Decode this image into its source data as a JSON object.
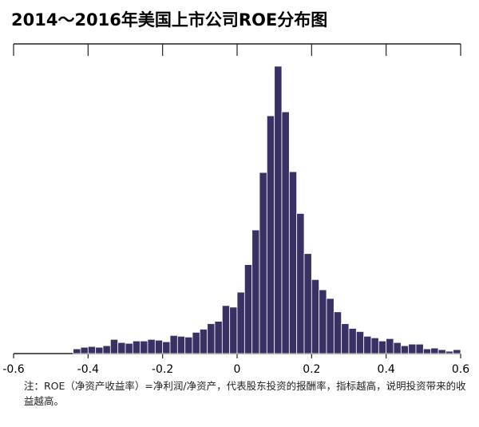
{
  "chart_data": {
    "type": "histogram",
    "title": "2014～2016年美国上市公司ROE分布图",
    "note": "注：ROE（净资产收益率）=净利润/净资产，代表股东投资的报酬率，指标越高，说明投资带来的收益越高。",
    "bins": [
      -0.44,
      -0.42,
      -0.4,
      -0.38,
      -0.36,
      -0.34,
      -0.32,
      -0.3,
      -0.28,
      -0.26,
      -0.24,
      -0.22,
      -0.2,
      -0.18,
      -0.16,
      -0.14,
      -0.12,
      -0.1,
      -0.08,
      -0.06,
      -0.04,
      -0.02,
      0,
      0.02,
      0.04,
      0.06,
      0.08,
      0.1,
      0.12,
      0.14,
      0.16,
      0.18,
      0.2,
      0.22,
      0.24,
      0.26,
      0.28,
      0.3,
      0.32,
      0.34,
      0.36,
      0.38,
      0.4,
      0.42,
      0.44,
      0.46,
      0.48,
      0.5,
      0.52,
      0.54,
      0.56,
      0.58,
      0.6
    ],
    "values": [
      6,
      8,
      9,
      8,
      10,
      18,
      14,
      13,
      16,
      16,
      18,
      17,
      15,
      23,
      22,
      21,
      27,
      31,
      38,
      41,
      61,
      59,
      78,
      113,
      157,
      230,
      302,
      365,
      307,
      231,
      178,
      127,
      94,
      81,
      70,
      53,
      38,
      32,
      28,
      22,
      20,
      16,
      19,
      14,
      10,
      12,
      12,
      6,
      7,
      5,
      3,
      5
    ],
    "color": "#393164",
    "xlim": [
      -0.6,
      0.6
    ],
    "xticks": [
      -0.6,
      -0.4,
      -0.2,
      0,
      0.2,
      0.4,
      0.6
    ],
    "ylim": [
      0,
      370
    ]
  }
}
